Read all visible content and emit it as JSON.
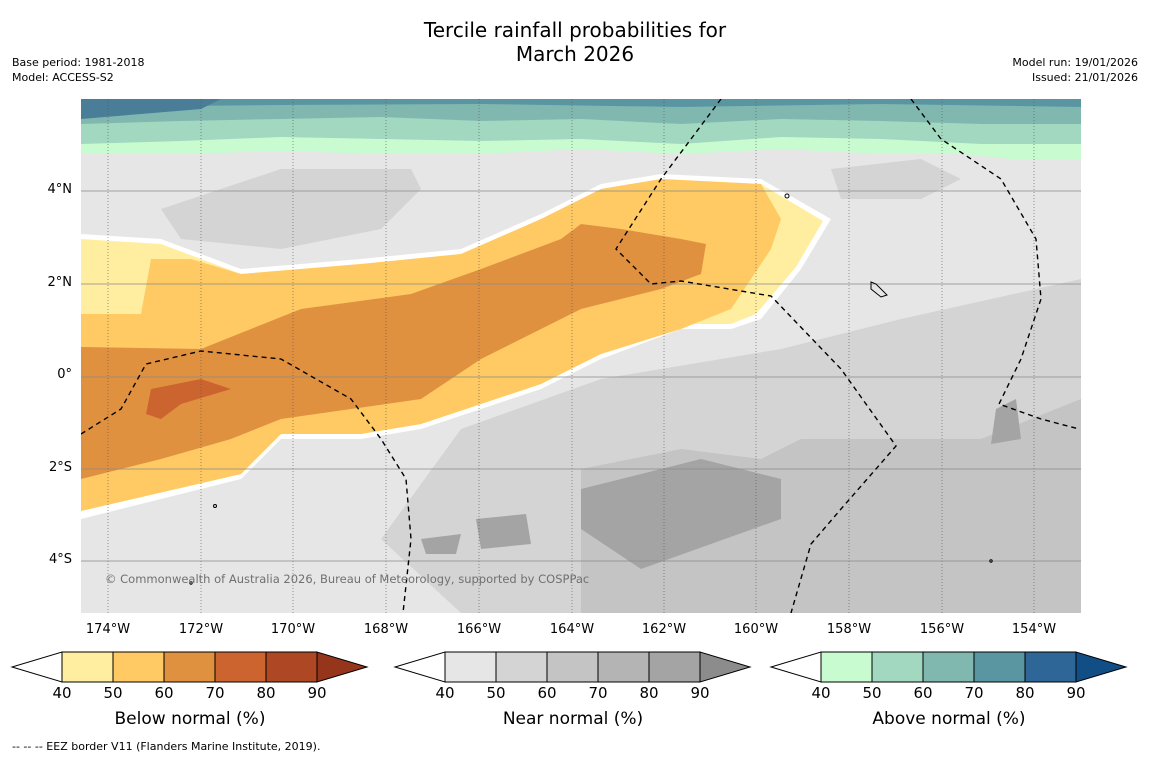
{
  "header": {
    "title_line1": "Tercile rainfall probabilities for",
    "title_line2": "March 2026",
    "base_period": "Base period: 1981-2018",
    "model": "Model: ACCESS-S2",
    "model_run": "Model run: 19/01/2026",
    "issued": "Issued: 21/01/2026"
  },
  "map": {
    "latitude_labels": [
      "4°N",
      "2°N",
      "0°",
      "2°S",
      "4°S"
    ],
    "longitude_labels": [
      "174°W",
      "172°W",
      "170°W",
      "168°W",
      "166°W",
      "164°W",
      "162°W",
      "160°W",
      "158°W",
      "156°W",
      "154°W"
    ],
    "copyright": "© Commonwealth of Australia 2026, Bureau of Meteorology, supported by COSPPac"
  },
  "colorbars": [
    {
      "label": "Below normal (%)",
      "ticks": [
        "40",
        "50",
        "60",
        "70",
        "80",
        "90"
      ],
      "colors": [
        "#ffffff",
        "#ffeea0",
        "#ffca63",
        "#e09140",
        "#cc6430",
        "#ae4824",
        "#94351c"
      ]
    },
    {
      "label": "Near normal (%)",
      "ticks": [
        "40",
        "50",
        "60",
        "70",
        "80",
        "90"
      ],
      "colors": [
        "#ffffff",
        "#e6e6e6",
        "#d4d4d4",
        "#c4c4c4",
        "#b4b4b4",
        "#a4a4a4",
        "#8c8c8c"
      ]
    },
    {
      "label": "Above normal (%)",
      "ticks": [
        "40",
        "50",
        "60",
        "70",
        "80",
        "90"
      ],
      "colors": [
        "#ffffff",
        "#c8fcd0",
        "#a2d8c0",
        "#80b8b0",
        "#5a96a2",
        "#2e6698",
        "#124e86"
      ]
    }
  ],
  "legend_note": "--  --  -- EEZ border V11 (Flanders Marine Institute, 2019)."
}
